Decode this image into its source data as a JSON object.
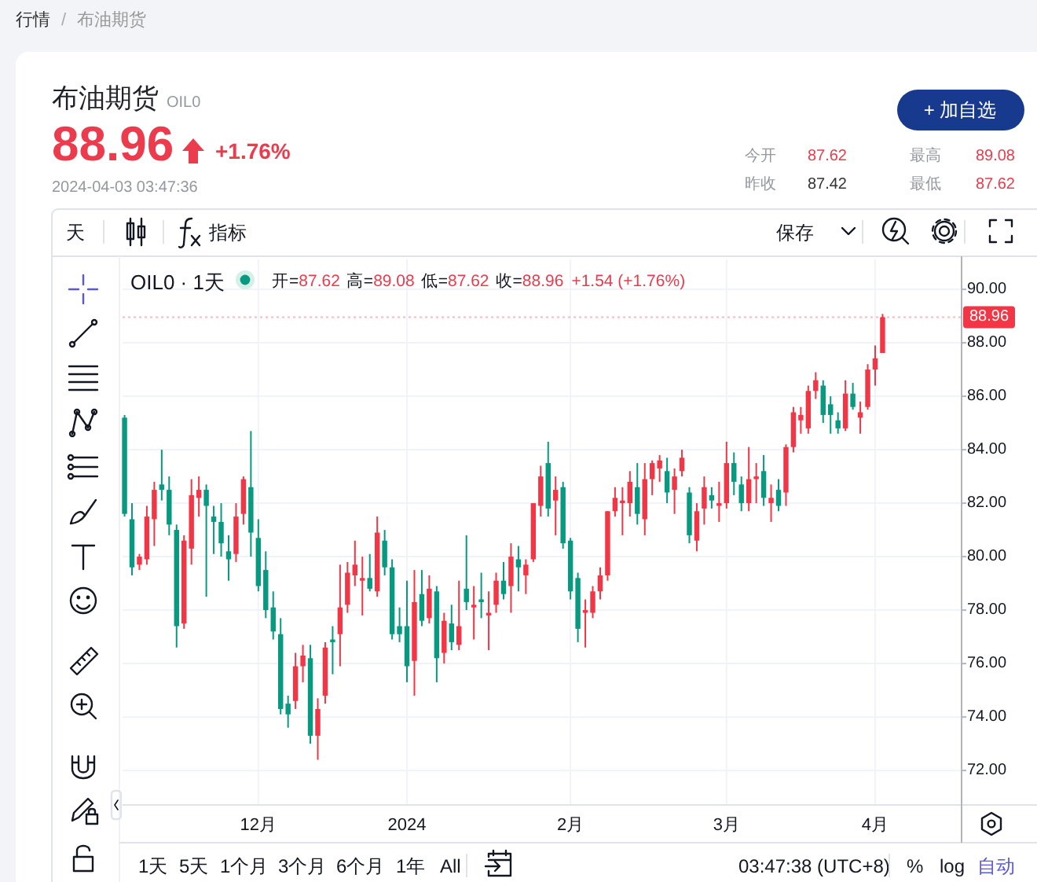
{
  "chart_data": {
    "type": "candlestick",
    "title": "布油期货",
    "subtitle": "OIL0",
    "annotations": [
      "行情",
      "/",
      "布油期货",
      "88.96",
      "+1.76%",
      "2024-04-03 03:47:36",
      "今开",
      "87.62",
      "最高",
      "89.08",
      "昨收",
      "87.42",
      "最低",
      "87.62",
      "+ 加自选",
      "天",
      "指标",
      "保存",
      "OIL0 · 1天",
      "开=",
      "87.62",
      "高=",
      "89.08",
      "低=",
      "87.62",
      "收=",
      "88.96",
      "+1.54 (+1.76%)",
      "1天",
      "5天",
      "1个月",
      "3个月",
      "6个月",
      "1年",
      "All",
      "03:47:38 (UTC+8)",
      "%",
      "log",
      "自动"
    ],
    "categories": [
      null,
      null,
      null,
      null,
      null,
      null,
      null,
      null,
      null,
      null,
      null,
      null,
      null,
      null,
      null,
      null,
      null,
      null,
      "12月",
      null,
      null,
      null,
      null,
      null,
      null,
      null,
      null,
      null,
      null,
      null,
      null,
      null,
      null,
      null,
      null,
      null,
      null,
      null,
      "2024",
      null,
      null,
      null,
      null,
      null,
      null,
      null,
      null,
      null,
      null,
      null,
      null,
      null,
      null,
      null,
      null,
      null,
      null,
      null,
      null,
      null,
      "2月",
      null,
      null,
      null,
      null,
      null,
      null,
      null,
      null,
      null,
      null,
      null,
      null,
      null,
      null,
      null,
      null,
      null,
      null,
      null,
      null,
      "3月",
      null,
      null,
      null,
      null,
      null,
      null,
      null,
      null,
      null,
      null,
      null,
      null,
      null,
      null,
      null,
      null,
      null,
      null,
      null,
      "4月",
      null
    ],
    "ohlc": [
      [
        85.2,
        85.3,
        81.5,
        81.6
      ],
      [
        81.4,
        82.0,
        79.3,
        79.6
      ],
      [
        79.7,
        80.1,
        79.5,
        80.0
      ],
      [
        79.9,
        81.9,
        79.7,
        81.5
      ],
      [
        81.4,
        82.8,
        80.4,
        82.5
      ],
      [
        82.7,
        84.0,
        82.1,
        82.5
      ],
      [
        82.5,
        83.0,
        80.8,
        81.2
      ],
      [
        81.0,
        81.2,
        76.6,
        77.4
      ],
      [
        77.5,
        80.8,
        77.3,
        80.6
      ],
      [
        80.3,
        82.9,
        79.7,
        82.3
      ],
      [
        82.2,
        83.0,
        81.5,
        82.5
      ],
      [
        82.5,
        82.7,
        78.5,
        81.9
      ],
      [
        81.5,
        81.9,
        80.1,
        81.3
      ],
      [
        81.3,
        82.0,
        80.0,
        80.5
      ],
      [
        80.2,
        80.8,
        79.1,
        79.9
      ],
      [
        80.1,
        82.0,
        79.8,
        81.5
      ],
      [
        81.6,
        83.0,
        81.2,
        82.9
      ],
      [
        82.6,
        84.7,
        80.0,
        80.9
      ],
      [
        80.7,
        81.4,
        78.7,
        78.9
      ],
      [
        79.5,
        80.2,
        77.7,
        78.0
      ],
      [
        78.1,
        78.7,
        76.9,
        77.2
      ],
      [
        77.1,
        77.7,
        74.1,
        74.3
      ],
      [
        74.5,
        74.8,
        73.6,
        74.1
      ],
      [
        74.6,
        76.4,
        74.3,
        75.9
      ],
      [
        75.9,
        76.7,
        75.3,
        76.3
      ],
      [
        76.2,
        76.7,
        73.0,
        73.3
      ],
      [
        73.3,
        74.7,
        72.4,
        74.3
      ],
      [
        74.8,
        76.8,
        74.5,
        76.6
      ],
      [
        76.9,
        77.4,
        75.6,
        76.8
      ],
      [
        77.1,
        79.7,
        75.9,
        78.1
      ],
      [
        78.2,
        79.8,
        77.9,
        79.4
      ],
      [
        79.3,
        80.6,
        78.9,
        79.7
      ],
      [
        79.1,
        80.0,
        77.8,
        79.2
      ],
      [
        79.2,
        80.1,
        78.7,
        78.8
      ],
      [
        78.7,
        81.5,
        78.5,
        80.9
      ],
      [
        80.6,
        81.0,
        79.3,
        79.6
      ],
      [
        79.6,
        79.9,
        76.9,
        77.1
      ],
      [
        77.4,
        78.1,
        76.8,
        77.1
      ],
      [
        77.4,
        79.1,
        75.3,
        75.9
      ],
      [
        76.1,
        79.5,
        74.8,
        78.3
      ],
      [
        78.6,
        79.5,
        77.4,
        77.6
      ],
      [
        77.7,
        79.3,
        77.5,
        78.8
      ],
      [
        78.7,
        78.9,
        75.3,
        76.2
      ],
      [
        76.4,
        77.9,
        76.0,
        77.6
      ],
      [
        77.5,
        78.2,
        76.5,
        76.8
      ],
      [
        76.7,
        79.1,
        76.5,
        77.4
      ],
      [
        78.8,
        80.8,
        78.0,
        78.3
      ],
      [
        78.1,
        78.9,
        76.9,
        78.2
      ],
      [
        78.4,
        79.4,
        77.7,
        78.3
      ],
      [
        77.8,
        78.7,
        76.5,
        77.9
      ],
      [
        78.2,
        79.4,
        77.9,
        79.1
      ],
      [
        79.1,
        79.8,
        78.4,
        78.6
      ],
      [
        78.9,
        80.5,
        77.9,
        80.0
      ],
      [
        79.9,
        80.4,
        78.7,
        79.6
      ],
      [
        79.3,
        79.9,
        78.6,
        79.7
      ],
      [
        79.9,
        82.0,
        79.8,
        82.0
      ],
      [
        81.9,
        83.4,
        81.5,
        83.0
      ],
      [
        83.5,
        84.3,
        81.5,
        81.8
      ],
      [
        82.1,
        83.0,
        80.8,
        82.5
      ],
      [
        82.6,
        82.8,
        80.3,
        80.5
      ],
      [
        80.6,
        80.7,
        78.4,
        78.7
      ],
      [
        79.2,
        79.4,
        76.8,
        77.3
      ],
      [
        77.9,
        78.4,
        76.6,
        78.0
      ],
      [
        77.9,
        78.9,
        77.7,
        78.7
      ],
      [
        78.7,
        79.6,
        78.4,
        79.3
      ],
      [
        79.3,
        81.7,
        79.1,
        81.7
      ],
      [
        81.7,
        82.6,
        81.5,
        82.2
      ],
      [
        82.0,
        82.6,
        80.8,
        82.1
      ],
      [
        82.0,
        83.2,
        81.5,
        82.8
      ],
      [
        82.6,
        83.5,
        81.2,
        81.6
      ],
      [
        81.4,
        83.5,
        80.8,
        82.9
      ],
      [
        82.9,
        83.6,
        82.3,
        83.5
      ],
      [
        83.3,
        83.8,
        82.8,
        83.6
      ],
      [
        83.2,
        83.7,
        82.0,
        82.4
      ],
      [
        82.5,
        83.3,
        81.6,
        83.0
      ],
      [
        83.2,
        84.0,
        83.0,
        83.7
      ],
      [
        82.4,
        82.6,
        80.5,
        80.8
      ],
      [
        80.6,
        82.0,
        80.2,
        81.7
      ],
      [
        81.8,
        83.0,
        81.2,
        82.6
      ],
      [
        82.3,
        82.6,
        81.8,
        82.1
      ],
      [
        81.9,
        82.8,
        81.3,
        82.0
      ],
      [
        82.0,
        84.3,
        81.8,
        83.5
      ],
      [
        83.5,
        83.9,
        82.3,
        82.8
      ],
      [
        82.7,
        83.0,
        81.7,
        82.0
      ],
      [
        82.0,
        84.1,
        81.7,
        82.9
      ],
      [
        82.9,
        83.5,
        82.0,
        83.0
      ],
      [
        83.2,
        83.8,
        81.9,
        82.2
      ],
      [
        82.0,
        82.7,
        81.3,
        82.2
      ],
      [
        82.5,
        82.9,
        81.7,
        81.9
      ],
      [
        82.4,
        84.2,
        81.9,
        84.1
      ],
      [
        84.1,
        85.6,
        83.9,
        85.4
      ],
      [
        85.1,
        85.6,
        84.6,
        85.3
      ],
      [
        84.8,
        86.4,
        84.6,
        86.2
      ],
      [
        86.2,
        86.9,
        85.9,
        86.6
      ],
      [
        86.4,
        86.6,
        85.0,
        85.3
      ],
      [
        85.7,
        86.0,
        84.6,
        85.3
      ],
      [
        85.1,
        85.4,
        84.6,
        84.8
      ],
      [
        84.8,
        86.6,
        84.7,
        86.1
      ],
      [
        86.1,
        86.5,
        85.5,
        85.6
      ],
      [
        85.2,
        85.8,
        84.6,
        85.4
      ],
      [
        85.6,
        87.2,
        85.5,
        87.0
      ],
      [
        87.0,
        87.9,
        86.4,
        87.42
      ],
      [
        87.62,
        89.08,
        87.62,
        88.96
      ]
    ],
    "colors": [
      "#089981",
      "#089981",
      "#f23645",
      "#f23645",
      "#f23645",
      "#089981",
      "#089981",
      "#089981",
      "#f23645",
      "#f23645",
      "#f23645",
      "#089981",
      "#089981",
      "#089981",
      "#089981",
      "#f23645",
      "#f23645",
      "#089981",
      "#089981",
      "#089981",
      "#089981",
      "#089981",
      "#089981",
      "#f23645",
      "#f23645",
      "#089981",
      "#f23645",
      "#f23645",
      "#089981",
      "#f23645",
      "#f23645",
      "#f23645",
      "#f23645",
      "#089981",
      "#f23645",
      "#089981",
      "#089981",
      "#089981",
      "#089981",
      "#f23645",
      "#089981",
      "#f23645",
      "#089981",
      "#f23645",
      "#089981",
      "#f23645",
      "#089981",
      "#f23645",
      "#089981",
      "#f23645",
      "#f23645",
      "#089981",
      "#f23645",
      "#089981",
      "#f23645",
      "#f23645",
      "#f23645",
      "#089981",
      "#f23645",
      "#089981",
      "#089981",
      "#089981",
      "#f23645",
      "#f23645",
      "#f23645",
      "#f23645",
      "#f23645",
      "#f23645",
      "#f23645",
      "#089981",
      "#f23645",
      "#f23645",
      "#f23645",
      "#089981",
      "#f23645",
      "#f23645",
      "#089981",
      "#f23645",
      "#f23645",
      "#089981",
      "#f23645",
      "#f23645",
      "#089981",
      "#089981",
      "#f23645",
      "#f23645",
      "#089981",
      "#f23645",
      "#089981",
      "#f23645",
      "#f23645",
      "#f23645",
      "#f23645",
      "#f23645",
      "#089981",
      "#089981",
      "#089981",
      "#f23645",
      "#089981",
      "#f23645",
      "#f23645",
      "#f23645",
      "#f23645"
    ],
    "ylim": [
      70.71,
      91.12
    ],
    "yticks": [
      {
        "value": 72,
        "label": "72.00"
      },
      {
        "value": 74,
        "label": "74.00"
      },
      {
        "value": 76,
        "label": "76.00"
      },
      {
        "value": 78,
        "label": "78.00"
      },
      {
        "value": 80,
        "label": "80.00"
      },
      {
        "value": 82,
        "label": "82.00"
      },
      {
        "value": 84,
        "label": "84.00"
      },
      {
        "value": 86,
        "label": "86.00"
      },
      {
        "value": 88,
        "label": "88.00"
      },
      {
        "value": 90,
        "label": "90.00"
      }
    ],
    "grid": true,
    "ref_lines": [
      {
        "axis": "y",
        "value": 88.96,
        "label": "88.96",
        "color": "#f23645",
        "line_style": "dotted"
      }
    ]
  }
}
